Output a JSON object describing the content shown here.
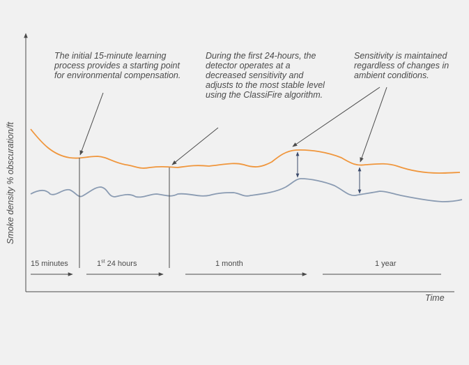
{
  "annotations": {
    "learning": "The initial 15-minute learning process provides a starting point for environmental compensation.",
    "first_day": "During the first 24-hours, the detector operates at a decreased sensitivity and adjusts to the most stable level using the ClassiFire algorithm.",
    "maintained": "Sensitivity is maintained regardless of changes in ambient conditions."
  },
  "axes": {
    "y_label": "Smoke density % obscuration/ft",
    "x_label": "Time"
  },
  "periods": {
    "p1": "15 minutes",
    "p2_main": "1",
    "p2_sup": "st",
    "p2_rest": " 24 hours",
    "p3": "1 month",
    "p4": "1 year"
  },
  "colors": {
    "sensitivity_curve": "#f0963c",
    "ambient_curve": "#8a9bb2",
    "axis": "#4a4a4a",
    "arrow": "#3b4a6b"
  }
}
